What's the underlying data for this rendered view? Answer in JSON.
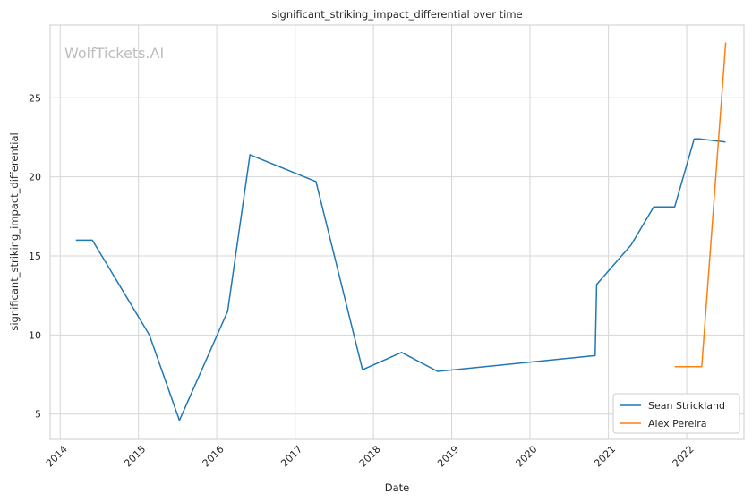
{
  "chart_data": {
    "type": "line",
    "title": "significant_striking_impact_differential over time",
    "xlabel": "Date",
    "ylabel": "significant_striking_impact_differential",
    "watermark": "WolfTickets.AI",
    "x_ticks": [
      "2014",
      "2015",
      "2016",
      "2017",
      "2018",
      "2019",
      "2020",
      "2021",
      "2022"
    ],
    "y_ticks": [
      5,
      10,
      15,
      20,
      25
    ],
    "xlim": [
      "2013-11-15",
      "2022-09-25"
    ],
    "ylim": [
      3.4,
      29.6
    ],
    "grid": true,
    "legend_position": "bottom-right",
    "series": [
      {
        "name": "Sean Strickland",
        "color": "#1f77b4",
        "x": [
          "2014-03-15",
          "2014-05-31",
          "2015-02-21",
          "2015-07-11",
          "2016-02-21",
          "2016-06-04",
          "2017-04-08",
          "2017-11-11",
          "2018-05-12",
          "2018-10-27",
          "2020-10-31",
          "2020-11-07",
          "2021-04-17",
          "2021-07-31",
          "2021-11-06",
          "2022-02-05",
          "2022-03-01",
          "2022-07-01"
        ],
        "y": [
          16.0,
          16.0,
          10.0,
          4.6,
          11.5,
          21.4,
          19.7,
          7.8,
          8.9,
          7.7,
          8.7,
          13.2,
          15.7,
          18.1,
          18.1,
          22.4,
          22.4,
          22.2
        ]
      },
      {
        "name": "Alex Pereira",
        "color": "#ff7f0e",
        "x": [
          "2021-11-06",
          "2022-03-12",
          "2022-07-02"
        ],
        "y": [
          8.0,
          8.0,
          28.5
        ]
      }
    ]
  }
}
